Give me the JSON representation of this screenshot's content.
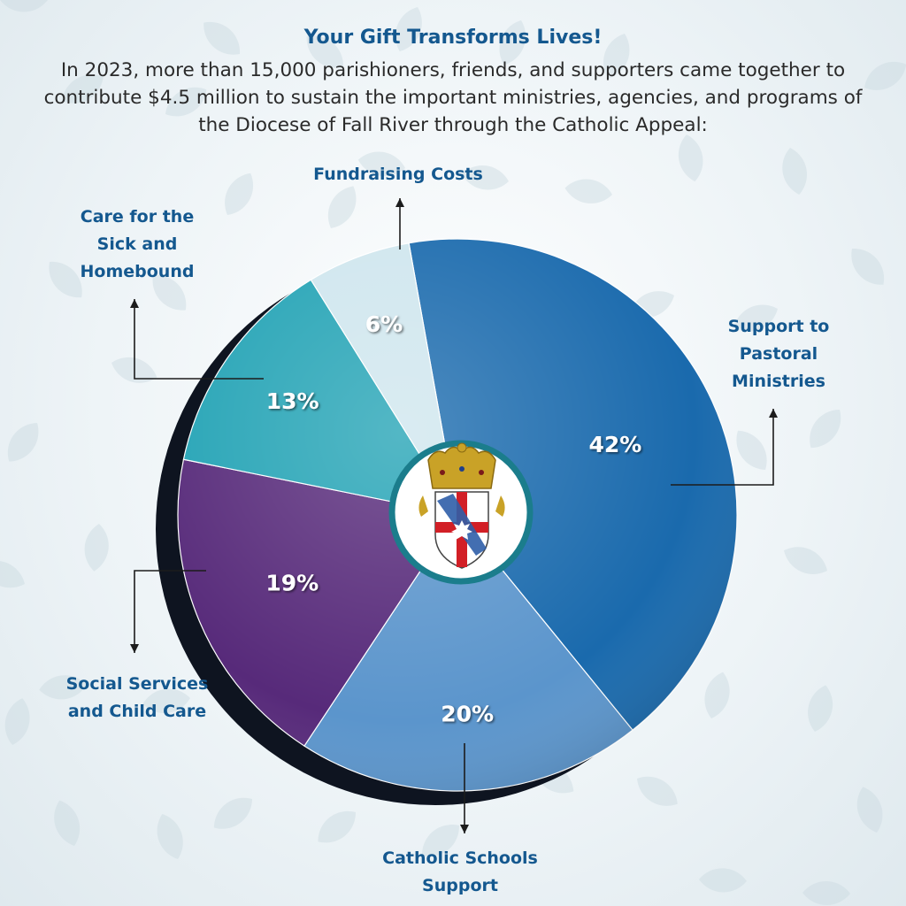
{
  "header": {
    "title": "Your Gift Transforms Lives!",
    "subtitle": "In 2023, more than 15,000 parishioners, friends, and supporters came together to contribute $4.5 million to sustain the important ministries, agencies, and programs of the Diocese of Fall River through the Catholic Appeal:"
  },
  "colors": {
    "title": "#14588f",
    "body_text": "#2a2a2a",
    "Support to Pastoral Ministries": "#1a6aad",
    "Catholic Schools Support": "#5b95cc",
    "Social Services and Child Care": "#572a7a",
    "Care for the Sick and Homebound": "#23a3b5",
    "Fundraising Costs": "#cfe6ee"
  },
  "chart_data": {
    "type": "pie",
    "title": "",
    "slices": [
      {
        "label": "Support to\nPastoral\nMinistries",
        "value": 42,
        "value_label": "42%"
      },
      {
        "label": "Catholic Schools\nSupport",
        "value": 20,
        "value_label": "20%"
      },
      {
        "label": "Social Services\nand Child Care",
        "value": 19,
        "value_label": "19%"
      },
      {
        "label": "Care for the\nSick and\nHomebound",
        "value": 13,
        "value_label": "13%"
      },
      {
        "label": "Fundraising Costs",
        "value": 6,
        "value_label": "6%"
      }
    ],
    "center_image": "diocese-coat-of-arms",
    "legend": "none"
  }
}
